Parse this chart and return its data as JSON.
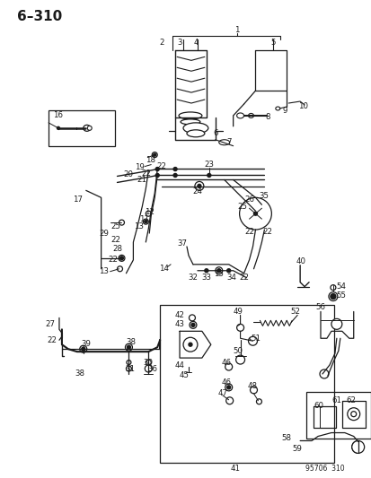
{
  "title": "6–310",
  "watermark": "95706  310",
  "bg_color": "#ffffff",
  "line_color": "#1a1a1a",
  "figsize": [
    4.14,
    5.33
  ],
  "dpi": 100
}
